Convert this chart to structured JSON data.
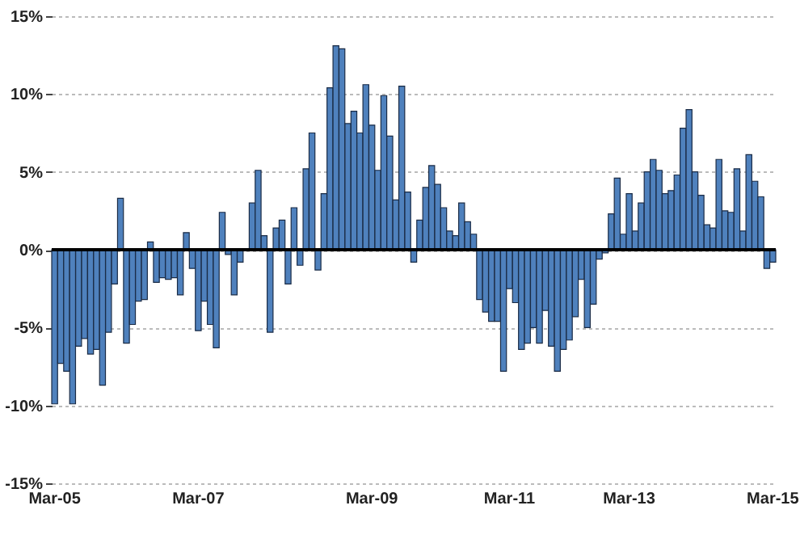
{
  "chart_data": {
    "type": "bar",
    "categories": [
      "Mar-05",
      null,
      null,
      null,
      null,
      null,
      null,
      null,
      null,
      null,
      null,
      null,
      null,
      null,
      null,
      null,
      null,
      null,
      null,
      null,
      null,
      null,
      null,
      null,
      "Mar-07",
      null,
      null,
      null,
      null,
      null,
      null,
      null,
      null,
      null,
      null,
      null,
      null,
      null,
      null,
      null,
      null,
      null,
      null,
      null,
      null,
      null,
      null,
      null,
      null,
      null,
      null,
      null,
      null,
      "Mar-09",
      null,
      null,
      null,
      null,
      null,
      null,
      null,
      null,
      null,
      null,
      null,
      null,
      null,
      null,
      null,
      null,
      null,
      null,
      null,
      null,
      null,
      null,
      "Mar-11",
      null,
      null,
      null,
      null,
      null,
      null,
      null,
      null,
      null,
      null,
      null,
      null,
      null,
      null,
      null,
      null,
      null,
      null,
      null,
      "Mar-13",
      null,
      null,
      null,
      null,
      null,
      null,
      null,
      null,
      null,
      null,
      null,
      null,
      null,
      null,
      null,
      null,
      null,
      null,
      null,
      null,
      null,
      null,
      null,
      "Mar-15"
    ],
    "values": [
      -9.9,
      -7.3,
      -7.8,
      -9.9,
      -6.2,
      -5.7,
      -6.7,
      -6.4,
      -8.7,
      -5.3,
      -2.2,
      3.3,
      -6.0,
      -4.8,
      -3.3,
      -3.2,
      0.5,
      -2.1,
      -1.8,
      -1.9,
      -1.8,
      -2.9,
      1.1,
      -1.2,
      -5.2,
      -3.3,
      -4.8,
      -6.3,
      2.4,
      -0.3,
      -2.9,
      -0.8,
      0,
      3.0,
      5.1,
      0.9,
      -5.3,
      1.4,
      1.9,
      -2.2,
      2.7,
      -1.0,
      5.2,
      7.5,
      -1.3,
      3.6,
      10.4,
      13.1,
      12.9,
      8.1,
      8.9,
      7.5,
      10.6,
      8.0,
      5.1,
      9.9,
      7.3,
      3.2,
      10.5,
      3.7,
      -0.8,
      1.9,
      4.0,
      5.4,
      4.2,
      2.7,
      1.2,
      0.9,
      3.0,
      1.8,
      1.0,
      -3.2,
      -4.0,
      -4.6,
      -4.6,
      -7.8,
      -2.5,
      -3.4,
      -6.4,
      -6.0,
      -5.0,
      -6.0,
      -3.9,
      -6.2,
      -7.8,
      -6.4,
      -5.8,
      -4.3,
      -1.9,
      -5.0,
      -3.5,
      -0.6,
      -0.2,
      2.3,
      4.6,
      1.0,
      3.6,
      1.2,
      3.0,
      5.0,
      5.8,
      5.1,
      3.6,
      3.8,
      4.8,
      7.8,
      9.0,
      5.0,
      3.5,
      1.6,
      1.4,
      5.8,
      2.5,
      2.4,
      5.2,
      1.2,
      6.1,
      4.4,
      3.4,
      -1.2,
      -0.8
    ],
    "color": "#4f81bd",
    "ylim": [
      -15,
      15
    ],
    "yticks": [
      {
        "value": -15,
        "label": "-15%"
      },
      {
        "value": -10,
        "label": "-10%"
      },
      {
        "value": -5,
        "label": "-5%"
      },
      {
        "value": 0,
        "label": "0%"
      },
      {
        "value": 5,
        "label": "5%"
      },
      {
        "value": 10,
        "label": "10%"
      },
      {
        "value": 15,
        "label": "15%"
      }
    ],
    "grid": "y"
  }
}
